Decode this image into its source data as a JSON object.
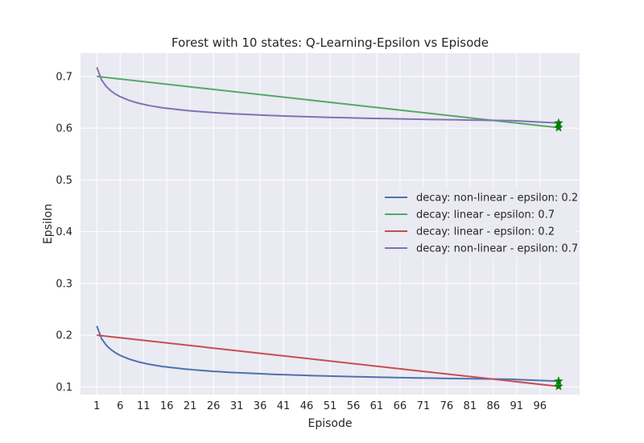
{
  "chart_data": {
    "type": "line",
    "title": "Forest with 10 states: Q-Learning-Epsilon vs Episode",
    "xlabel": "Episode",
    "ylabel": "Epsilon",
    "x_ticks": [
      "1",
      "6",
      "11",
      "16",
      "21",
      "26",
      "31",
      "36",
      "41",
      "46",
      "51",
      "56",
      "61",
      "66",
      "71",
      "76",
      "81",
      "86",
      "91",
      "96"
    ],
    "y_ticks": [
      "0.1",
      "0.2",
      "0.3",
      "0.4",
      "0.5",
      "0.6",
      "0.7"
    ],
    "xlim": [
      -2.5,
      104.5
    ],
    "ylim": [
      0.085,
      0.745
    ],
    "grid": true,
    "legend_position": "center-right",
    "final_marker": "star",
    "final_marker_color": "#008000",
    "series": [
      {
        "name": "decay: non-linear - epsilon: 0.2",
        "color": "#4c72b0",
        "decay": "non-linear",
        "x": [
          1,
          2,
          3,
          4,
          5,
          6,
          8,
          10,
          12,
          15,
          20,
          25,
          30,
          40,
          50,
          60,
          70,
          80,
          90,
          100
        ],
        "y": [
          0.2177,
          0.1935,
          0.1808,
          0.1722,
          0.1659,
          0.1609,
          0.1535,
          0.1482,
          0.1441,
          0.1395,
          0.1344,
          0.1307,
          0.1279,
          0.1239,
          0.1211,
          0.119,
          0.1173,
          0.1159,
          0.1147,
          0.111
        ]
      },
      {
        "name": "decay: linear - epsilon: 0.7",
        "color": "#55a868",
        "decay": "linear",
        "x": [
          1,
          100
        ],
        "y": [
          0.7,
          0.601
        ]
      },
      {
        "name": "decay: linear - epsilon: 0.2",
        "color": "#c44e52",
        "decay": "linear",
        "x": [
          1,
          100
        ],
        "y": [
          0.2,
          0.101
        ]
      },
      {
        "name": "decay: non-linear - epsilon: 0.7",
        "color": "#8172b2",
        "decay": "non-linear",
        "x": [
          1,
          2,
          3,
          4,
          5,
          6,
          8,
          10,
          12,
          15,
          20,
          25,
          30,
          40,
          50,
          60,
          70,
          80,
          90,
          100
        ],
        "y": [
          0.7177,
          0.6935,
          0.6808,
          0.6722,
          0.6659,
          0.6609,
          0.6535,
          0.6482,
          0.6441,
          0.6395,
          0.6344,
          0.6307,
          0.6279,
          0.6239,
          0.6211,
          0.619,
          0.6173,
          0.6159,
          0.6147,
          0.61
        ]
      }
    ]
  }
}
